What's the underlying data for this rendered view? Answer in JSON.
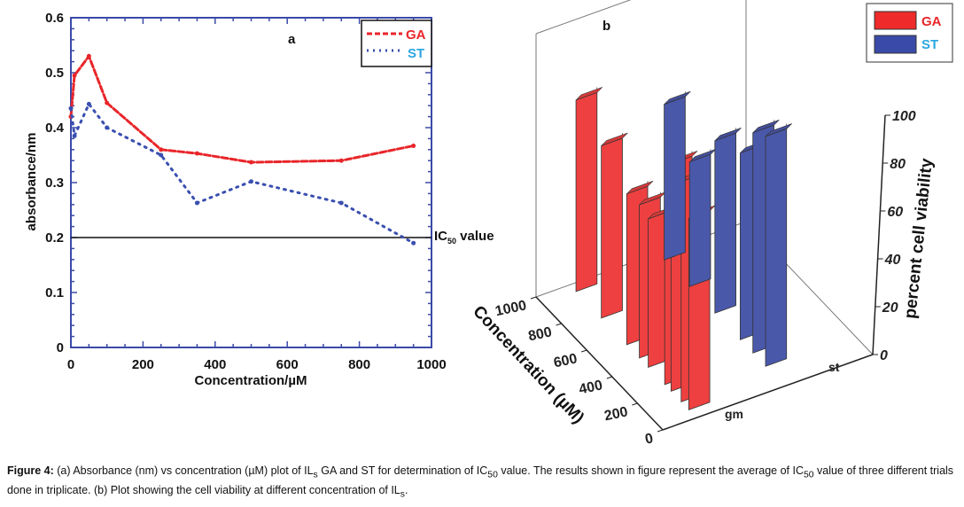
{
  "chart_data": [
    {
      "type": "line",
      "panel_label": "a",
      "xlabel": "Concentration/µM",
      "ylabel": "absorbance/nm",
      "xlim": [
        0,
        1000
      ],
      "ylim": [
        0,
        0.6
      ],
      "xticks": [
        "0",
        "200",
        "400",
        "600",
        "800",
        "1000"
      ],
      "yticks": [
        "0",
        "0.1",
        "0.2",
        "0.3",
        "0.4",
        "0.5",
        "0.6"
      ],
      "legend_position": "top-right",
      "reference_line": {
        "y": 0.2,
        "label_main": "IC",
        "label_sub": "50",
        "label_tail": " value"
      },
      "series": [
        {
          "name": "GA",
          "color": "#e8262a",
          "label_color": "#e8262a",
          "style": "dashed",
          "x": [
            0,
            10,
            50,
            100,
            250,
            350,
            500,
            750,
            950
          ],
          "y": [
            0.42,
            0.495,
            0.53,
            0.445,
            0.36,
            0.353,
            0.337,
            0.34,
            0.367
          ]
        },
        {
          "name": "ST",
          "color": "#3a4fb0",
          "label_color": "#2aa6e0",
          "style": "dotted",
          "x": [
            0,
            10,
            50,
            100,
            250,
            350,
            500,
            750,
            950
          ],
          "y": [
            0.435,
            0.385,
            0.443,
            0.4,
            0.35,
            0.263,
            0.302,
            0.263,
            0.19
          ]
        }
      ]
    },
    {
      "type": "bar3d",
      "panel_label": "b",
      "xlabel": "Concentration (µM)",
      "zlabel": "percent cell viability",
      "xticks": [
        "0",
        "200",
        "400",
        "600",
        "800",
        "1000"
      ],
      "zticks": [
        "0",
        "20",
        "40",
        "60",
        "80",
        "100"
      ],
      "zlim": [
        0,
        100
      ],
      "categories": [
        "gm",
        "st"
      ],
      "legend_position": "top-right",
      "series": [
        {
          "name": "GA",
          "category": "gm",
          "color": "#ee4040",
          "label_color": "#e8262a",
          "x": [
            950,
            750,
            550,
            450,
            380,
            250,
            200,
            120,
            60
          ],
          "values": [
            80,
            72,
            63,
            64,
            62,
            74,
            95,
            92,
            80
          ]
        },
        {
          "name": "ST",
          "category": "st",
          "color": "#4a58aa",
          "label_color": "#2aa6e0",
          "x": [
            950,
            750,
            550,
            350,
            250,
            150
          ],
          "values": [
            65,
            52,
            72,
            78,
            92,
            96
          ]
        }
      ]
    }
  ],
  "caption": {
    "figure_label": "Figure 4:",
    "p1": " (a) Absorbance (nm) vs concentration (µM) plot of IL",
    "s1": "s",
    "p2": " GA and ST for determination of IC",
    "s2": "50",
    "p3": " value. The results shown in figure represent the average of IC",
    "s3": "50",
    "p4": " value of three different trials done in triplicate. (b) Plot showing the cell viability at different concentration of IL",
    "s4": "s",
    "p5": "."
  }
}
